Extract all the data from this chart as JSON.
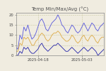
{
  "title": "Temp Min/Max/Avg (°C)",
  "background_color": "#f0ece0",
  "plot_bg_color": "#f0ece0",
  "xlim": [
    0,
    44
  ],
  "ylim": [
    0,
    21
  ],
  "yticks": [
    0,
    5,
    10,
    15,
    20
  ],
  "xtick_labels": [
    "2025-04-18",
    "2025-05-03"
  ],
  "xtick_positions": [
    11,
    33
  ],
  "grid_color": "#c8c8a0",
  "max_color": "#5555dd",
  "avg_color": "#ddaa44",
  "min_color": "#2222aa",
  "title_fontsize": 5.0,
  "tick_fontsize": 3.8,
  "linewidth": 0.6,
  "max_values": [
    4,
    3,
    10,
    8,
    14,
    12,
    15,
    11,
    8,
    9,
    11,
    14,
    17,
    18,
    16,
    13,
    12,
    14,
    16,
    17,
    18,
    20,
    18,
    15,
    14,
    12,
    11,
    13,
    15,
    14,
    12,
    11,
    12,
    14,
    16,
    14,
    12,
    14,
    16,
    15,
    13,
    12,
    14,
    15,
    16
  ],
  "avg_values": [
    2,
    2,
    6,
    5,
    9,
    8,
    9,
    7,
    5,
    5,
    7,
    8,
    10,
    11,
    10,
    8,
    7,
    8,
    10,
    11,
    11,
    12,
    11,
    9,
    8,
    7,
    7,
    8,
    10,
    9,
    7,
    6,
    7,
    9,
    10,
    8,
    7,
    9,
    10,
    9,
    7,
    6,
    8,
    9,
    9
  ],
  "min_values": [
    0,
    0,
    2,
    1,
    4,
    3,
    4,
    2,
    1,
    1,
    2,
    3,
    5,
    6,
    4,
    3,
    2,
    3,
    4,
    5,
    5,
    6,
    5,
    4,
    3,
    2,
    2,
    3,
    4,
    3,
    2,
    1,
    2,
    3,
    4,
    3,
    2,
    3,
    4,
    3,
    2,
    0,
    1,
    2,
    3
  ]
}
